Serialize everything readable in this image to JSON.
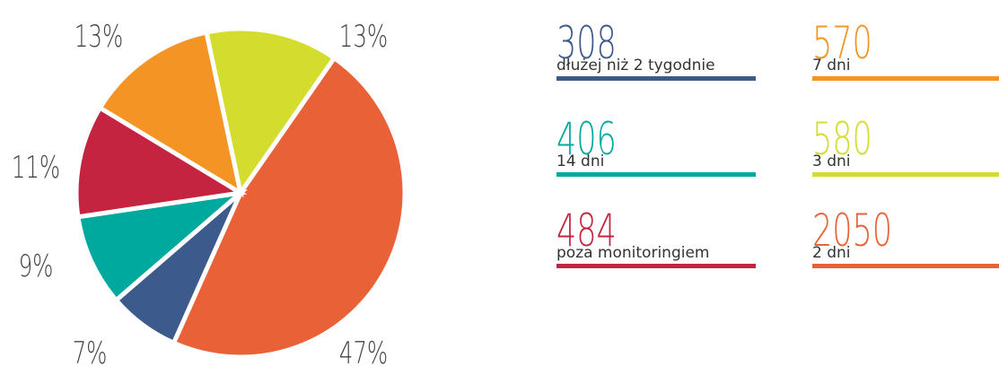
{
  "chart_data": {
    "type": "pie",
    "categories": [
      "3 dni",
      "2 dni",
      "dłużej niż 2 tygodnie",
      "14 dni",
      "poza monitoringiem",
      "7 dni"
    ],
    "values": [
      13,
      47,
      7,
      9,
      11,
      13
    ],
    "value_labels": [
      "13%",
      "47%",
      "7%",
      "9%",
      "11%",
      "13%"
    ],
    "counts": [
      580,
      2050,
      308,
      406,
      484,
      570
    ],
    "colors": [
      "#d4dc2e",
      "#e96237",
      "#3d5a8c",
      "#00a99d",
      "#c4243f",
      "#f39425"
    ]
  }
}
